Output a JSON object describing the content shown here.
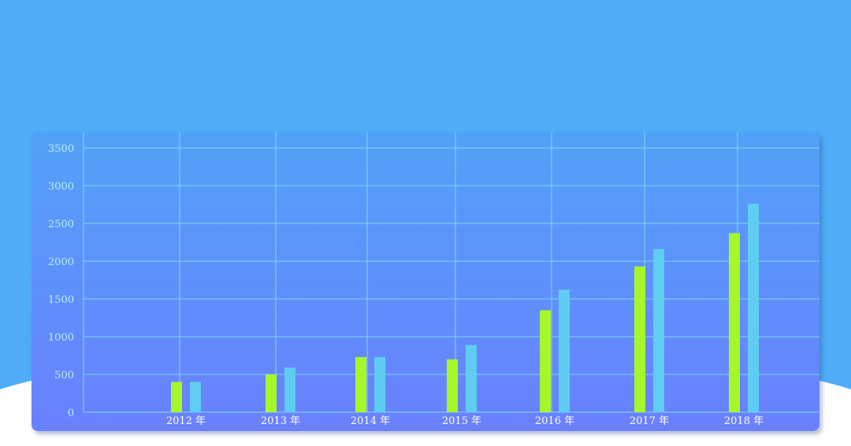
{
  "colors": {
    "sky": "#4fadf8",
    "card_top": "#52a1f8",
    "card_bottom": "#6a80fe",
    "grid": "#7fd8f0",
    "series_1": "#a6f72a",
    "series_2": "#5fcdf2"
  },
  "chart_data": {
    "type": "bar",
    "categories": [
      "2012 年",
      "2013 年",
      "2014 年",
      "2015 年",
      "2016 年",
      "2017 年",
      "2018 年"
    ],
    "series": [
      {
        "color": "#a6f72a",
        "values": [
          400,
          500,
          730,
          700,
          1350,
          1930,
          2370
        ]
      },
      {
        "color": "#5fcdf2",
        "values": [
          400,
          590,
          730,
          890,
          1620,
          2160,
          2760
        ]
      }
    ],
    "yticks": [
      0,
      500,
      1000,
      1500,
      2000,
      2500,
      3000,
      3500
    ],
    "ylim": [
      0,
      3500
    ],
    "grid": true,
    "title": "",
    "xlabel": "",
    "ylabel": ""
  }
}
